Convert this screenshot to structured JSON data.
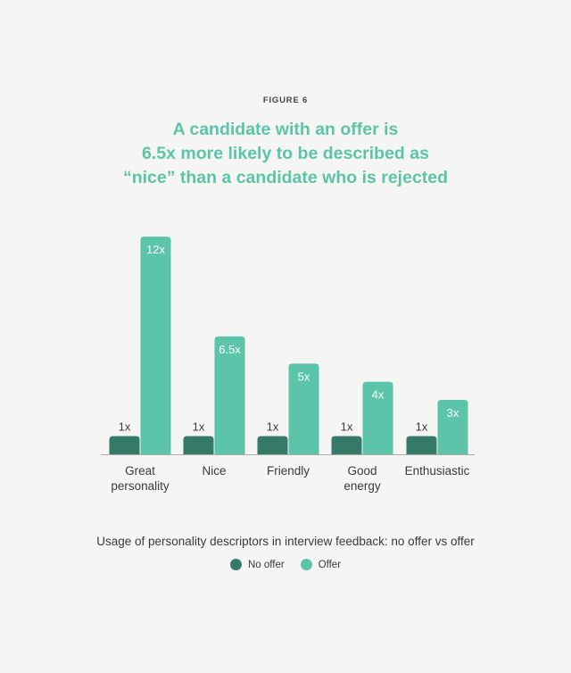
{
  "figure_label": "FIGURE 6",
  "headline": [
    "A candidate with an offer is",
    "6.5x more likely to be described as",
    "“nice” than a candidate who is rejected"
  ],
  "caption": "Usage of personality descriptors in interview feedback: no offer vs offer",
  "colors": {
    "no_offer": "#357a68",
    "offer": "#5cc4a8",
    "headline": "#5cc4a8",
    "axis": "#aaaaaa",
    "bar_label": "#ffffff",
    "base_label": "#3a3a3a"
  },
  "legend": [
    {
      "label": "No offer",
      "color": "#357a68"
    },
    {
      "label": "Offer",
      "color": "#5cc4a8"
    }
  ],
  "chart_data": {
    "type": "bar",
    "categories": [
      [
        "Great",
        "personality"
      ],
      [
        "Nice"
      ],
      [
        "Friendly"
      ],
      [
        "Good",
        "energy"
      ],
      [
        "Enthusiastic"
      ]
    ],
    "series": [
      {
        "name": "No offer",
        "values": [
          1,
          1,
          1,
          1,
          1
        ],
        "labels": [
          "1x",
          "1x",
          "1x",
          "1x",
          "1x"
        ]
      },
      {
        "name": "Offer",
        "values": [
          12,
          6.5,
          5,
          4,
          3
        ],
        "labels": [
          "12x",
          "6.5x",
          "5x",
          "4x",
          "3x"
        ]
      }
    ],
    "ylim": [
      0,
      12.3
    ],
    "legend_position": "bottom",
    "grid": false
  }
}
